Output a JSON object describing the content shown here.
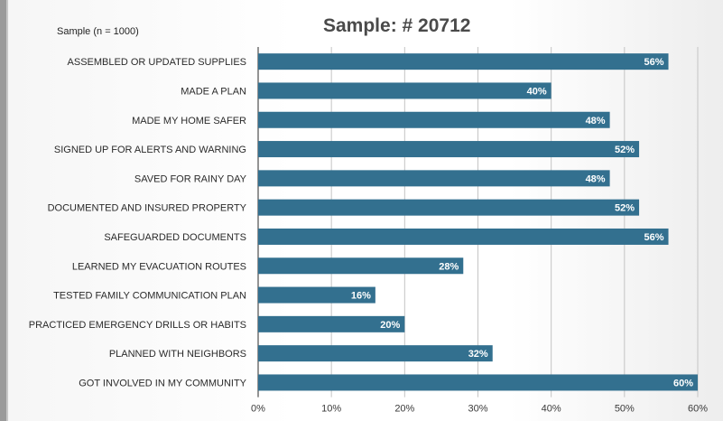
{
  "chart_data": {
    "type": "bar",
    "orientation": "horizontal",
    "title": "Sample: # 20712",
    "subtitle": "Sample (n = 1000)",
    "categories": [
      "ASSEMBLED OR UPDATED SUPPLIES",
      "MADE A PLAN",
      "MADE MY HOME SAFER",
      "SIGNED UP FOR ALERTS AND WARNING",
      "SAVED FOR  RAINY DAY",
      "DOCUMENTED AND INSURED PROPERTY",
      "SAFEGUARDED DOCUMENTS",
      "LEARNED MY EVACUATION ROUTES",
      "TESTED FAMILY COMMUNICATION PLAN",
      "PRACTICED EMERGENCY DRILLS OR HABITS",
      "PLANNED WITH NEIGHBORS",
      "GOT INVOLVED IN MY COMMUNITY"
    ],
    "values": [
      56,
      40,
      48,
      52,
      48,
      52,
      56,
      28,
      16,
      20,
      32,
      60
    ],
    "value_labels": [
      "56%",
      "40%",
      "48%",
      "52%",
      "48%",
      "52%",
      "56%",
      "28%",
      "16%",
      "20%",
      "32%",
      "60%"
    ],
    "xlim": [
      0,
      60
    ],
    "x_ticks": [
      0,
      10,
      20,
      30,
      40,
      50,
      60
    ],
    "x_tick_labels": [
      "0%",
      "10%",
      "20%",
      "30%",
      "40%",
      "50%",
      "60%"
    ],
    "grid": "vertical",
    "bar_color": "#33708f",
    "label_color": "#ffffff"
  }
}
